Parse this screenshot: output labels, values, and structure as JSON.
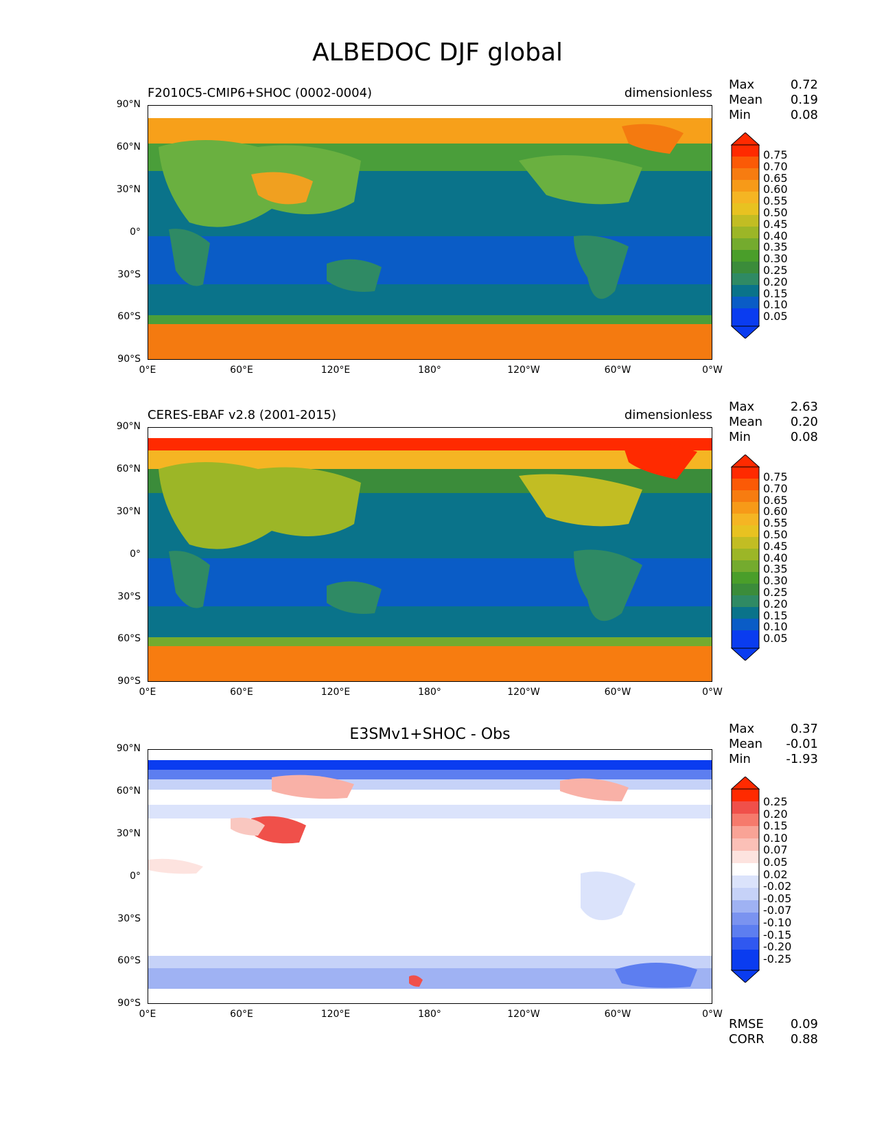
{
  "figure": {
    "title": "ALBEDOC DJF global"
  },
  "axes": {
    "y_ticks": [
      "90°N",
      "60°N",
      "30°N",
      "0°",
      "30°S",
      "60°S",
      "90°S"
    ],
    "x_ticks": [
      "0°E",
      "60°E",
      "120°E",
      "180°",
      "120°W",
      "60°W",
      "0°W"
    ]
  },
  "panels": [
    {
      "title": "F2010C5-CMIP6+SHOC (0002-0004)",
      "units": "dimensionless",
      "stats": {
        "max_label": "Max",
        "max": "0.72",
        "mean_label": "Mean",
        "mean": "0.19",
        "min_label": "Min",
        "min": "0.08"
      },
      "colorbar": [
        "0.75",
        "0.70",
        "0.65",
        "0.60",
        "0.55",
        "0.50",
        "0.45",
        "0.40",
        "0.35",
        "0.30",
        "0.25",
        "0.20",
        "0.15",
        "0.10",
        "0.05"
      ]
    },
    {
      "title": "CERES-EBAF v2.8 (2001-2015)",
      "units": "dimensionless",
      "stats": {
        "max_label": "Max",
        "max": "2.63",
        "mean_label": "Mean",
        "mean": "0.20",
        "min_label": "Min",
        "min": "0.08"
      },
      "colorbar": [
        "0.75",
        "0.70",
        "0.65",
        "0.60",
        "0.55",
        "0.50",
        "0.45",
        "0.40",
        "0.35",
        "0.30",
        "0.25",
        "0.20",
        "0.15",
        "0.10",
        "0.05"
      ]
    },
    {
      "title": "E3SMv1+SHOC - Obs",
      "units": "",
      "stats": {
        "max_label": "Max",
        "max": "0.37",
        "mean_label": "Mean",
        "mean": "-0.01",
        "min_label": "Min",
        "min": "-1.93"
      },
      "colorbar": [
        "0.25",
        "0.20",
        "0.15",
        "0.10",
        "0.07",
        "0.05",
        "0.02",
        "-0.02",
        "-0.05",
        "-0.07",
        "-0.10",
        "-0.15",
        "-0.20",
        "-0.25"
      ],
      "extra": {
        "rmse_label": "RMSE",
        "rmse": "0.09",
        "corr_label": "CORR",
        "corr": "0.88"
      }
    }
  ],
  "chart_data": {
    "type": "heatmap",
    "title": "ALBEDOC DJF global",
    "xlim": [
      0,
      360
    ],
    "ylim": [
      -90,
      90
    ],
    "panels": [
      {
        "name": "F2010C5-CMIP6+SHOC (0002-0004)",
        "max": 0.72,
        "mean": 0.19,
        "min": 0.08,
        "levels": [
          0.05,
          0.1,
          0.15,
          0.2,
          0.25,
          0.3,
          0.35,
          0.4,
          0.45,
          0.5,
          0.55,
          0.6,
          0.65,
          0.7,
          0.75
        ]
      },
      {
        "name": "CERES-EBAF v2.8 (2001-2015)",
        "max": 2.63,
        "mean": 0.2,
        "min": 0.08,
        "levels": [
          0.05,
          0.1,
          0.15,
          0.2,
          0.25,
          0.3,
          0.35,
          0.4,
          0.45,
          0.5,
          0.55,
          0.6,
          0.65,
          0.7,
          0.75
        ]
      },
      {
        "name": "E3SMv1+SHOC - Obs",
        "max": 0.37,
        "mean": -0.01,
        "min": -1.93,
        "rmse": 0.09,
        "corr": 0.88,
        "levels": [
          -0.25,
          -0.2,
          -0.15,
          -0.1,
          -0.07,
          -0.05,
          -0.02,
          0.02,
          0.05,
          0.07,
          0.1,
          0.15,
          0.2,
          0.25
        ]
      }
    ]
  }
}
